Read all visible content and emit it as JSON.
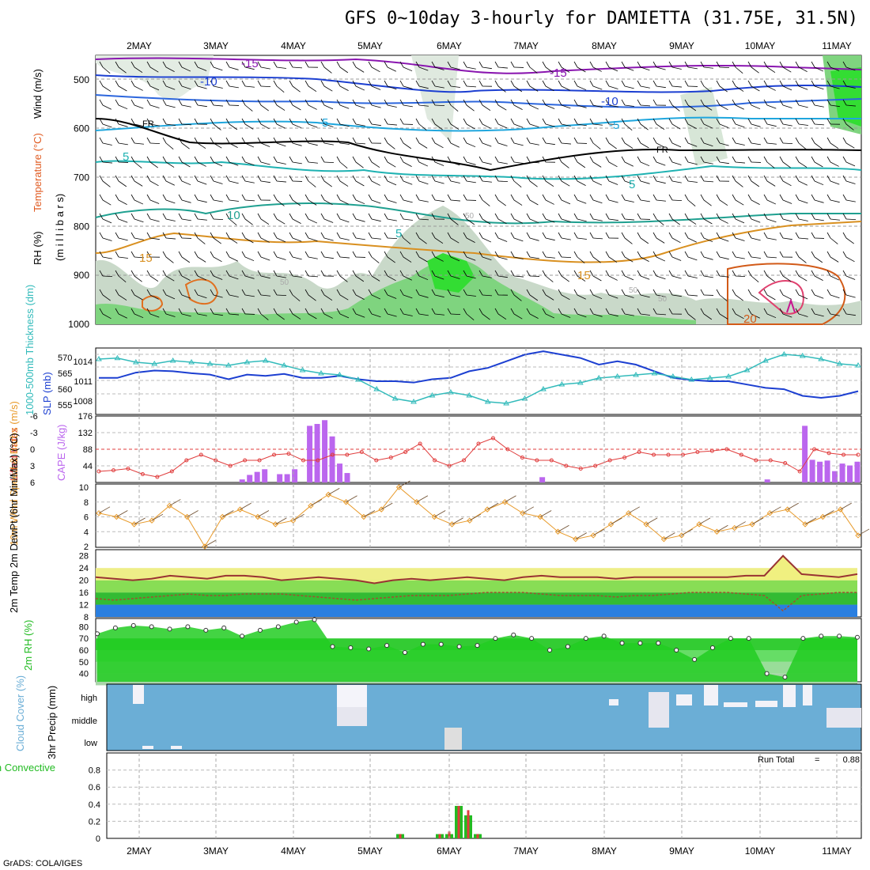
{
  "title": "GFS 0~10day 3-hourly for DAMIETTA (31.75E, 31.5N)",
  "footer": "GrADS: COLA/IGES",
  "dates": [
    "2MAY",
    "3MAY",
    "4MAY",
    "5MAY",
    "6MAY",
    "7MAY",
    "8MAY",
    "9MAY",
    "10MAY",
    "11MAY"
  ],
  "colors": {
    "rh_green": "#33cc33",
    "temp_line": "#993333",
    "slp": "#1c3fd1",
    "thickness": "#33bbbb",
    "cape": "#bb66ee",
    "lifted": "#e03c3c",
    "wind": "#e89a2a",
    "cloud": "#6baed6",
    "rh2m": "#22cc22",
    "precip": "#22bb22",
    "conv": "#e03c3c"
  },
  "chart_data": [
    {
      "type": "heatmap",
      "name": "upper-air",
      "ylabel_parts": [
        "RH (%)",
        "Temperature (°C)",
        "Wind (m/s)"
      ],
      "ylabel_units": "(m i l l i b a r s)",
      "ylim": [
        1000,
        450
      ],
      "yticks": [
        500,
        600,
        700,
        800,
        900,
        1000
      ],
      "contour_labels": [
        "-15",
        "-15",
        "-10",
        "-10",
        "-5",
        "-5",
        "FR",
        "FR",
        "5",
        "5",
        "5",
        "10",
        "15",
        "15",
        "20",
        "50",
        "50",
        "50",
        "50"
      ]
    },
    {
      "type": "line",
      "name": "slp-thickness",
      "ylabel_left": "1000-500mb Thickness (dm)",
      "ylabel_right": "SLP (mb)",
      "yticks_left": [
        555,
        560,
        565,
        570
      ],
      "yticks_right": [
        1008,
        1011,
        1014
      ],
      "series": [
        {
          "name": "SLP",
          "values": [
            1011.5,
            1011.5,
            1012.3,
            1012.6,
            1012.5,
            1012.2,
            1012.0,
            1011.3,
            1012.0,
            1011.8,
            1012.1,
            1011.5,
            1011.5,
            1011.8,
            1011.3,
            1011.0,
            1011.0,
            1010.8,
            1011.3,
            1011.5,
            1012.5,
            1013.0,
            1014.0,
            1015.0,
            1015.5,
            1015.0,
            1014.5,
            1013.5,
            1014.0,
            1013.5,
            1012.5,
            1011.5,
            1011.2,
            1011.0,
            1011.0,
            1010.5,
            1010.0,
            1009.8,
            1008.8,
            1008.5,
            1008.8,
            1009.5
          ]
        },
        {
          "name": "Thickness",
          "values": [
            569.5,
            569.8,
            568.5,
            568.0,
            569.0,
            568.5,
            568.0,
            567.5,
            568.5,
            569.0,
            567.5,
            566.0,
            565.0,
            564.5,
            563.0,
            560.0,
            557.0,
            556.0,
            558.0,
            559.0,
            558.0,
            556.0,
            555.5,
            557.0,
            560.0,
            561.5,
            562.0,
            563.5,
            564.0,
            564.5,
            565.0,
            564.0,
            563.0,
            563.5,
            564.0,
            566.0,
            569.0,
            571.0,
            570.5,
            569.5,
            568.0,
            567.5
          ]
        }
      ]
    },
    {
      "type": "bar",
      "name": "cape-lifted",
      "ylabel_left": "Lifted Index",
      "ylabel_right": "CAPE (J/kg)",
      "yticks_left": [
        -6,
        -3,
        0,
        3,
        6
      ],
      "yticks_right": [
        44,
        88,
        132,
        176
      ],
      "series": [
        {
          "name": "CAPE",
          "values": [
            0,
            0,
            0,
            0,
            0,
            0,
            0,
            0,
            0,
            0,
            0,
            0,
            0,
            0,
            0,
            0,
            0,
            0,
            0,
            8,
            20,
            28,
            35,
            0,
            22,
            22,
            35,
            0,
            150,
            155,
            165,
            122,
            50,
            25,
            0,
            0,
            0,
            0,
            0,
            0,
            0,
            0,
            0,
            0,
            0,
            0,
            0,
            0,
            0,
            0,
            0,
            0,
            0,
            0,
            0,
            0,
            0,
            0,
            0,
            14,
            0,
            0,
            0,
            0,
            0,
            0,
            0,
            0,
            0,
            0,
            0,
            0,
            0,
            0,
            0,
            0,
            0,
            0,
            0,
            0,
            0,
            0,
            0,
            0,
            0,
            0,
            0,
            0,
            0,
            8,
            0,
            0,
            0,
            0,
            150,
            60,
            55,
            58,
            30,
            50,
            45,
            55
          ]
        },
        {
          "name": "Lifted Index",
          "values": [
            4,
            3.8,
            3.5,
            4.5,
            5,
            4,
            2,
            1,
            2,
            3,
            2,
            2,
            1,
            0.8,
            2,
            2,
            1,
            1,
            0.5,
            2,
            1.5,
            0.5,
            -1,
            2,
            3,
            2,
            -1,
            -2,
            0,
            1.5,
            2,
            2,
            3,
            3.5,
            3,
            2,
            1.5,
            0.5,
            1,
            1,
            1,
            0.5,
            0.3,
            0,
            1,
            2,
            2,
            2.5,
            4,
            0,
            0.7,
            1,
            1
          ]
        }
      ]
    },
    {
      "type": "line",
      "name": "wind10m",
      "ylabel": "10m Wind Speed & Barbs (m/s)",
      "yticks": [
        2,
        4,
        6,
        8,
        10
      ],
      "series": [
        {
          "name": "Wind Speed",
          "values": [
            6.5,
            6.0,
            5.0,
            5.5,
            7.5,
            6.0,
            2.0,
            6.0,
            7.0,
            6.0,
            5.0,
            5.5,
            7.5,
            9.0,
            8.0,
            6.0,
            7.0,
            10.0,
            8.0,
            6.0,
            5.0,
            5.5,
            7.0,
            8.0,
            6.5,
            6.0,
            4.0,
            3.0,
            3.5,
            5.0,
            6.5,
            5.0,
            3.0,
            3.5,
            5.0,
            4.0,
            4.5,
            5.0,
            6.5,
            7.0,
            5.0,
            6.0,
            7.0,
            3.5
          ]
        }
      ]
    },
    {
      "type": "area",
      "name": "temp2m",
      "ylabel": "2m Temp 2m DewPt (6hr Min/Max) (°C)",
      "yticks": [
        8,
        12,
        16,
        20,
        24,
        28
      ],
      "series": [
        {
          "name": "2m Temp",
          "values": [
            21,
            20.5,
            20,
            20.5,
            21.5,
            21,
            20.5,
            21.5,
            21.5,
            21,
            20,
            20.5,
            21,
            20.5,
            20,
            19,
            20,
            20.5,
            20,
            20.5,
            21,
            20.5,
            20,
            21,
            21.5,
            21,
            21,
            21,
            20.5,
            21,
            21,
            21,
            21,
            21,
            21,
            21.5,
            21.5,
            28,
            22,
            21.5,
            21,
            22
          ]
        },
        {
          "name": "2m DewPt",
          "values": [
            14,
            13.5,
            14,
            14.5,
            15,
            15.5,
            15,
            15,
            15.5,
            15.5,
            15.5,
            15,
            14.5,
            14,
            13.5,
            14,
            14.5,
            15,
            15,
            15,
            15.5,
            16,
            16,
            16,
            15.5,
            15,
            15,
            15,
            14.5,
            15,
            15,
            15.5,
            16,
            16,
            16,
            15.5,
            15,
            10,
            15,
            15.5,
            16,
            16
          ]
        }
      ]
    },
    {
      "type": "area",
      "name": "rh2m",
      "ylabel": "2m RH (%)",
      "yticks": [
        40,
        50,
        60,
        70,
        80
      ],
      "series": [
        {
          "name": "2m RH",
          "values": [
            74,
            79,
            81,
            80,
            78,
            80,
            77,
            79,
            72,
            77,
            80,
            84,
            86,
            63,
            62,
            61,
            64,
            58,
            65,
            65,
            63,
            64,
            70,
            73,
            70,
            60,
            63,
            70,
            72,
            66,
            66,
            66,
            60,
            52,
            62,
            70,
            70,
            40,
            37,
            70,
            72,
            72,
            71
          ]
        }
      ]
    },
    {
      "type": "heatmap",
      "name": "cloud-cover",
      "ylabel": "Cloud Cover (%)",
      "levels": [
        "high",
        "middle",
        "low"
      ]
    },
    {
      "type": "bar",
      "name": "precip",
      "ylabel_left": "Total / Rain Convective",
      "ylabel": "3hr Precip (mm)",
      "yticks": [
        0,
        0.2,
        0.4,
        0.6,
        0.8
      ],
      "run_total_label": "Run Total",
      "run_total": "0.88",
      "series": [
        {
          "name": "Total",
          "values": [
            0.05,
            0.05,
            0.05,
            0.38,
            0.27,
            0.05
          ]
        },
        {
          "name": "Convective",
          "values": [
            0.05,
            0.05,
            0.08,
            0.38,
            0.33,
            0.05
          ]
        }
      ]
    }
  ]
}
